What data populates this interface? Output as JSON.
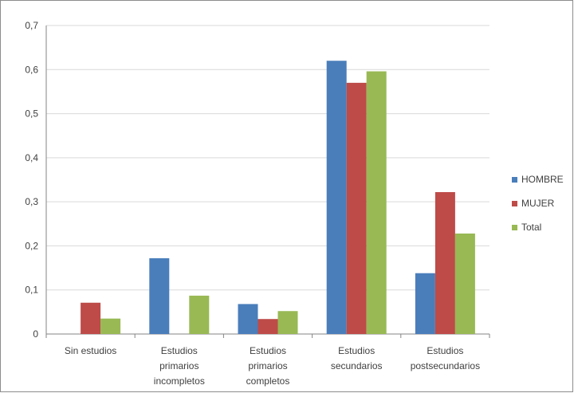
{
  "chart_data": {
    "type": "bar",
    "categories": [
      [
        "Sin estudios"
      ],
      [
        "Estudios",
        "primarios",
        "incompletos"
      ],
      [
        "Estudios",
        "primarios",
        "completos"
      ],
      [
        "Estudios",
        "secundarios"
      ],
      [
        "Estudios",
        "postsecundarios"
      ]
    ],
    "series": [
      {
        "name": "HOMBRE",
        "color": "#4a7ebb",
        "values": [
          0,
          0.172,
          0.068,
          0.62,
          0.138
        ]
      },
      {
        "name": "MUJER",
        "color": "#be4b48",
        "values": [
          0.071,
          0,
          0.034,
          0.57,
          0.322
        ]
      },
      {
        "name": "Total",
        "color": "#98b954",
        "values": [
          0.035,
          0.087,
          0.052,
          0.596,
          0.228
        ]
      }
    ],
    "y_ticks": [
      "0",
      "0,1",
      "0,2",
      "0,3",
      "0,4",
      "0,5",
      "0,6",
      "0,7"
    ],
    "ylim": [
      0,
      0.7
    ],
    "grid": true,
    "legend": "right"
  }
}
